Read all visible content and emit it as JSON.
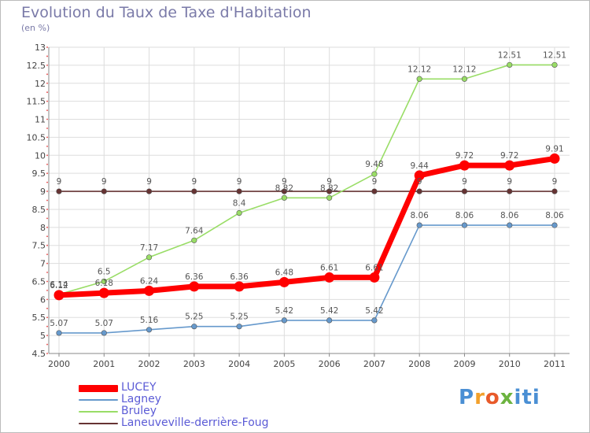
{
  "title": "Evolution du Taux de Taxe d'Habitation",
  "subtitle": "(en %)",
  "logo": "Proxiti",
  "chart_data": {
    "type": "line",
    "x": [
      "2000",
      "2001",
      "2002",
      "2003",
      "2004",
      "2005",
      "2006",
      "2007",
      "2008",
      "2009",
      "2010",
      "2011"
    ],
    "ylim": [
      4.5,
      13
    ],
    "yticks": [
      "4.5",
      "5",
      "5.5",
      "6",
      "6.5",
      "7",
      "7.5",
      "8",
      "8.5",
      "9",
      "9.5",
      "10",
      "10.5",
      "11",
      "11.5",
      "12",
      "12.5",
      "13"
    ],
    "grid": true,
    "legend_position": "bottom-left",
    "series": [
      {
        "name": "LUCEY",
        "color": "#ff0000",
        "values": [
          6.12,
          6.18,
          6.24,
          6.36,
          6.36,
          6.48,
          6.61,
          6.61,
          9.44,
          9.72,
          9.72,
          9.91
        ],
        "labels": [
          "6.12",
          "6.18",
          "6.24",
          "6.36",
          "6.36",
          "6.48",
          "6.61",
          "6.61",
          "9.44",
          "9.72",
          "9.72",
          "9.91"
        ]
      },
      {
        "name": "Lagney",
        "color": "#6699cc",
        "values": [
          5.07,
          5.07,
          5.16,
          5.25,
          5.25,
          5.42,
          5.42,
          5.42,
          8.06,
          8.06,
          8.06,
          8.06
        ],
        "labels": [
          "5.07",
          "5.07",
          "5.16",
          "5.25",
          "5.25",
          "5.42",
          "5.42",
          "5.42",
          "8.06",
          "8.06",
          "8.06",
          "8.06"
        ]
      },
      {
        "name": "Bruley",
        "color": "#99dd66",
        "values": [
          6.14,
          6.5,
          7.17,
          7.64,
          8.4,
          8.82,
          8.82,
          9.48,
          12.12,
          12.12,
          12.51,
          12.51
        ],
        "labels": [
          "6.14",
          "6.5",
          "7.17",
          "7.64",
          "8.4",
          "8.82",
          "8.82",
          "9.48",
          "12.12",
          "12.12",
          "12.51",
          "12.51"
        ]
      },
      {
        "name": "Laneuveville-derrière-Foug",
        "color": "#663333",
        "values": [
          9,
          9,
          9,
          9,
          9,
          9,
          9,
          9,
          9,
          9,
          9,
          9
        ],
        "labels": [
          "9",
          "9",
          "9",
          "9",
          "9",
          "9",
          "9",
          "9",
          "9",
          "9",
          "9",
          "9"
        ]
      }
    ]
  }
}
